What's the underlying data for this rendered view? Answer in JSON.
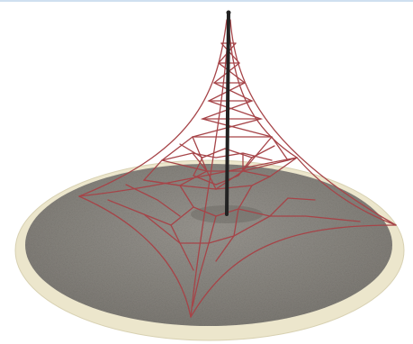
{
  "image": {
    "subject": "rope-net-climbing-pyramid",
    "colors": {
      "background": "#ffffff",
      "base_rim": "#ece6cc",
      "base_surface": "#8d8a84",
      "rope": "#a64448",
      "mast": "#222222",
      "top_rule": "#cfe0f0"
    }
  }
}
